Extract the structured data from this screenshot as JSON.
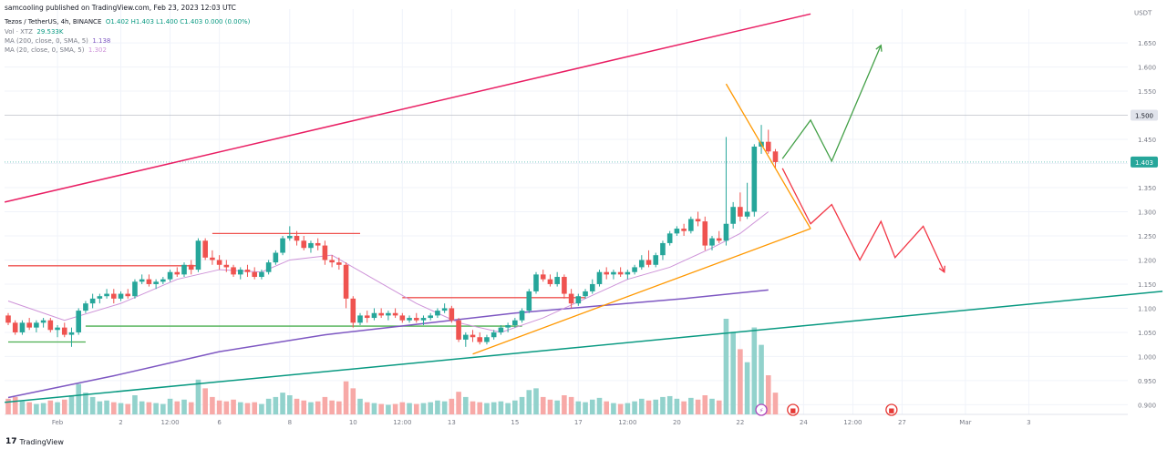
{
  "publisher_line": "samcooling published on TradingView.com, Feb 23, 2023 12:03 UTC",
  "header": {
    "symbol": "Tezos / TetherUS, 4h, BINANCE",
    "ohlc": "O1.402  H1.403  L1.400  C1.403  0.000 (0.00%)",
    "vol_label": "Vol · XTZ",
    "vol_value": "29.533K",
    "ma200_label": "MA (200, close, 0, SMA, 5)",
    "ma200_value": "1.138",
    "ma20_label": "MA (20, close, 0, SMA, 5)",
    "ma20_value": "1.302"
  },
  "footer": {
    "logo_text": "TradingView",
    "logo_mark": "17"
  },
  "colors": {
    "up": "#26a69a",
    "down": "#ef5350",
    "up_vol": "#92d2cc",
    "down_vol": "#f7a9a7",
    "ma20": "#ce93d8",
    "ma200": "#7e57c2",
    "channel_top": "#e91e63",
    "channel_bottom": "#089981",
    "triangle": "#ff9800",
    "bull_path": "#43a047",
    "bear_path": "#f23645"
  },
  "chart_data": {
    "type": "candlestick",
    "title": "Tezos / TetherUS, 4h, BINANCE",
    "currency": "USDT",
    "ylim": [
      0.88,
      1.72
    ],
    "y_ticks": [
      0.9,
      0.95,
      1.0,
      1.05,
      1.1,
      1.15,
      1.2,
      1.25,
      1.3,
      1.35,
      1.4,
      1.45,
      1.55,
      1.6,
      1.65
    ],
    "x_ticks": [
      {
        "label": "Feb",
        "bar": 7
      },
      {
        "label": "2",
        "bar": 16
      },
      {
        "label": "12:00",
        "bar": 23
      },
      {
        "label": "6",
        "bar": 30
      },
      {
        "label": "8",
        "bar": 40
      },
      {
        "label": "10",
        "bar": 49
      },
      {
        "label": "12:00",
        "bar": 56
      },
      {
        "label": "13",
        "bar": 63
      },
      {
        "label": "15",
        "bar": 72
      },
      {
        "label": "17",
        "bar": 81
      },
      {
        "label": "12:00",
        "bar": 88
      },
      {
        "label": "20",
        "bar": 95
      },
      {
        "label": "22",
        "bar": 104
      },
      {
        "label": "24",
        "bar": 113
      },
      {
        "label": "12:00",
        "bar": 120
      },
      {
        "label": "27",
        "bar": 127
      },
      {
        "label": "Mar",
        "bar": 136
      },
      {
        "label": "3",
        "bar": 145
      }
    ],
    "price_labels": [
      {
        "text": "1.500",
        "value": 1.5,
        "style": "grey"
      },
      {
        "text": "1.403",
        "value": 1.403,
        "style": "green"
      }
    ],
    "candles": [
      [
        1.085,
        1.09,
        1.065,
        1.07,
        18
      ],
      [
        1.07,
        1.075,
        1.045,
        1.05,
        20
      ],
      [
        1.05,
        1.075,
        1.045,
        1.07,
        15
      ],
      [
        1.07,
        1.08,
        1.055,
        1.06,
        14
      ],
      [
        1.06,
        1.075,
        1.05,
        1.07,
        12
      ],
      [
        1.07,
        1.08,
        1.06,
        1.075,
        13
      ],
      [
        1.075,
        1.08,
        1.05,
        1.055,
        16
      ],
      [
        1.055,
        1.065,
        1.04,
        1.06,
        14
      ],
      [
        1.06,
        1.07,
        1.04,
        1.045,
        17
      ],
      [
        1.045,
        1.06,
        1.02,
        1.05,
        22
      ],
      [
        1.05,
        1.1,
        1.045,
        1.095,
        35
      ],
      [
        1.095,
        1.115,
        1.09,
        1.11,
        25
      ],
      [
        1.11,
        1.13,
        1.1,
        1.12,
        20
      ],
      [
        1.12,
        1.13,
        1.11,
        1.125,
        15
      ],
      [
        1.125,
        1.14,
        1.12,
        1.13,
        16
      ],
      [
        1.13,
        1.14,
        1.11,
        1.12,
        14
      ],
      [
        1.12,
        1.135,
        1.115,
        1.13,
        13
      ],
      [
        1.13,
        1.14,
        1.12,
        1.125,
        12
      ],
      [
        1.125,
        1.16,
        1.12,
        1.155,
        22
      ],
      [
        1.155,
        1.17,
        1.15,
        1.16,
        15
      ],
      [
        1.16,
        1.17,
        1.145,
        1.15,
        14
      ],
      [
        1.15,
        1.16,
        1.14,
        1.155,
        13
      ],
      [
        1.155,
        1.165,
        1.15,
        1.16,
        12
      ],
      [
        1.16,
        1.18,
        1.155,
        1.175,
        18
      ],
      [
        1.175,
        1.185,
        1.165,
        1.17,
        15
      ],
      [
        1.17,
        1.195,
        1.165,
        1.19,
        17
      ],
      [
        1.19,
        1.2,
        1.17,
        1.18,
        14
      ],
      [
        1.18,
        1.245,
        1.175,
        1.24,
        40
      ],
      [
        1.24,
        1.245,
        1.2,
        1.205,
        30
      ],
      [
        1.205,
        1.22,
        1.19,
        1.2,
        20
      ],
      [
        1.2,
        1.21,
        1.18,
        1.19,
        16
      ],
      [
        1.19,
        1.2,
        1.175,
        1.185,
        15
      ],
      [
        1.185,
        1.19,
        1.165,
        1.17,
        17
      ],
      [
        1.17,
        1.185,
        1.16,
        1.18,
        14
      ],
      [
        1.18,
        1.19,
        1.165,
        1.175,
        13
      ],
      [
        1.175,
        1.185,
        1.16,
        1.165,
        14
      ],
      [
        1.165,
        1.18,
        1.16,
        1.175,
        12
      ],
      [
        1.175,
        1.2,
        1.17,
        1.195,
        18
      ],
      [
        1.195,
        1.22,
        1.19,
        1.215,
        20
      ],
      [
        1.215,
        1.25,
        1.21,
        1.245,
        25
      ],
      [
        1.245,
        1.27,
        1.24,
        1.25,
        22
      ],
      [
        1.25,
        1.26,
        1.23,
        1.24,
        18
      ],
      [
        1.24,
        1.25,
        1.22,
        1.225,
        16
      ],
      [
        1.225,
        1.24,
        1.215,
        1.235,
        14
      ],
      [
        1.235,
        1.245,
        1.22,
        1.23,
        15
      ],
      [
        1.23,
        1.24,
        1.19,
        1.2,
        20
      ],
      [
        1.2,
        1.21,
        1.185,
        1.195,
        16
      ],
      [
        1.195,
        1.205,
        1.18,
        1.19,
        15
      ],
      [
        1.19,
        1.195,
        1.1,
        1.12,
        38
      ],
      [
        1.12,
        1.125,
        1.06,
        1.07,
        30
      ],
      [
        1.07,
        1.09,
        1.065,
        1.085,
        18
      ],
      [
        1.085,
        1.095,
        1.07,
        1.08,
        14
      ],
      [
        1.08,
        1.1,
        1.075,
        1.09,
        13
      ],
      [
        1.09,
        1.1,
        1.08,
        1.085,
        12
      ],
      [
        1.085,
        1.095,
        1.075,
        1.09,
        11
      ],
      [
        1.09,
        1.1,
        1.08,
        1.085,
        12
      ],
      [
        1.085,
        1.09,
        1.07,
        1.075,
        14
      ],
      [
        1.075,
        1.085,
        1.07,
        1.08,
        13
      ],
      [
        1.08,
        1.09,
        1.07,
        1.075,
        12
      ],
      [
        1.075,
        1.085,
        1.065,
        1.08,
        13
      ],
      [
        1.08,
        1.09,
        1.075,
        1.085,
        14
      ],
      [
        1.085,
        1.1,
        1.08,
        1.095,
        16
      ],
      [
        1.095,
        1.11,
        1.09,
        1.1,
        15
      ],
      [
        1.1,
        1.105,
        1.07,
        1.075,
        18
      ],
      [
        1.075,
        1.08,
        1.03,
        1.035,
        26
      ],
      [
        1.035,
        1.05,
        1.02,
        1.045,
        20
      ],
      [
        1.045,
        1.055,
        1.03,
        1.04,
        15
      ],
      [
        1.04,
        1.05,
        1.025,
        1.03,
        14
      ],
      [
        1.03,
        1.045,
        1.025,
        1.04,
        13
      ],
      [
        1.04,
        1.055,
        1.035,
        1.05,
        14
      ],
      [
        1.05,
        1.065,
        1.045,
        1.06,
        15
      ],
      [
        1.06,
        1.07,
        1.05,
        1.065,
        13
      ],
      [
        1.065,
        1.08,
        1.06,
        1.075,
        16
      ],
      [
        1.075,
        1.1,
        1.07,
        1.095,
        20
      ],
      [
        1.095,
        1.14,
        1.09,
        1.135,
        28
      ],
      [
        1.135,
        1.175,
        1.13,
        1.17,
        30
      ],
      [
        1.17,
        1.18,
        1.155,
        1.16,
        20
      ],
      [
        1.16,
        1.17,
        1.145,
        1.15,
        17
      ],
      [
        1.15,
        1.175,
        1.145,
        1.165,
        16
      ],
      [
        1.165,
        1.17,
        1.12,
        1.13,
        22
      ],
      [
        1.13,
        1.14,
        1.1,
        1.11,
        20
      ],
      [
        1.11,
        1.13,
        1.105,
        1.125,
        15
      ],
      [
        1.125,
        1.14,
        1.12,
        1.135,
        14
      ],
      [
        1.135,
        1.16,
        1.13,
        1.15,
        17
      ],
      [
        1.15,
        1.18,
        1.145,
        1.175,
        19
      ],
      [
        1.175,
        1.185,
        1.16,
        1.17,
        15
      ],
      [
        1.17,
        1.18,
        1.16,
        1.175,
        13
      ],
      [
        1.175,
        1.185,
        1.165,
        1.17,
        12
      ],
      [
        1.17,
        1.18,
        1.16,
        1.175,
        13
      ],
      [
        1.175,
        1.19,
        1.17,
        1.185,
        15
      ],
      [
        1.185,
        1.21,
        1.18,
        1.2,
        18
      ],
      [
        1.2,
        1.22,
        1.185,
        1.19,
        16
      ],
      [
        1.19,
        1.215,
        1.185,
        1.21,
        17
      ],
      [
        1.21,
        1.24,
        1.2,
        1.235,
        20
      ],
      [
        1.235,
        1.26,
        1.23,
        1.255,
        21
      ],
      [
        1.255,
        1.27,
        1.25,
        1.265,
        18
      ],
      [
        1.265,
        1.275,
        1.25,
        1.26,
        15
      ],
      [
        1.26,
        1.29,
        1.255,
        1.285,
        19
      ],
      [
        1.285,
        1.3,
        1.27,
        1.28,
        17
      ],
      [
        1.28,
        1.29,
        1.22,
        1.23,
        22
      ],
      [
        1.23,
        1.25,
        1.22,
        1.245,
        18
      ],
      [
        1.245,
        1.26,
        1.235,
        1.24,
        16
      ],
      [
        1.24,
        1.455,
        1.23,
        1.275,
        110
      ],
      [
        1.275,
        1.32,
        1.265,
        1.31,
        95
      ],
      [
        1.31,
        1.34,
        1.28,
        1.29,
        75
      ],
      [
        1.29,
        1.36,
        1.285,
        1.3,
        60
      ],
      [
        1.3,
        1.44,
        1.29,
        1.435,
        100
      ],
      [
        1.435,
        1.48,
        1.42,
        1.445,
        80
      ],
      [
        1.445,
        1.47,
        1.42,
        1.425,
        45
      ],
      [
        1.425,
        1.43,
        1.39,
        1.403,
        25
      ]
    ],
    "ma20": [
      [
        0,
        1.115
      ],
      [
        8,
        1.075
      ],
      [
        16,
        1.11
      ],
      [
        24,
        1.16
      ],
      [
        30,
        1.18
      ],
      [
        36,
        1.175
      ],
      [
        40,
        1.2
      ],
      [
        46,
        1.21
      ],
      [
        52,
        1.16
      ],
      [
        58,
        1.11
      ],
      [
        64,
        1.07
      ],
      [
        70,
        1.05
      ],
      [
        76,
        1.08
      ],
      [
        82,
        1.12
      ],
      [
        88,
        1.16
      ],
      [
        94,
        1.185
      ],
      [
        100,
        1.225
      ],
      [
        104,
        1.255
      ],
      [
        108,
        1.3
      ]
    ],
    "ma200": [
      [
        0,
        0.915
      ],
      [
        15,
        0.96
      ],
      [
        30,
        1.01
      ],
      [
        45,
        1.045
      ],
      [
        60,
        1.07
      ],
      [
        72,
        1.09
      ],
      [
        84,
        1.105
      ],
      [
        96,
        1.12
      ],
      [
        108,
        1.138
      ]
    ],
    "drawings": {
      "channel_top": [
        [
          -0.5,
          1.32
        ],
        [
          114,
          1.71
        ]
      ],
      "channel_bottom": [
        [
          -0.5,
          0.905
        ],
        [
          164,
          1.135
        ]
      ],
      "triangle_upper": [
        [
          102,
          1.565
        ],
        [
          114,
          1.265
        ]
      ],
      "triangle_lower": [
        [
          66,
          1.005
        ],
        [
          114,
          1.265
        ]
      ],
      "h_res_1": {
        "from": 0,
        "to": 27,
        "y": 1.188
      },
      "h_res_2": {
        "from": 29,
        "to": 50,
        "y": 1.255
      },
      "h_res_3": {
        "from": 56,
        "to": 82,
        "y": 1.122
      },
      "h_sup_1": {
        "from": 0,
        "to": 11,
        "y": 1.03
      },
      "h_sup_2": {
        "from": 11,
        "to": 73,
        "y": 1.063
      },
      "bull_path": [
        [
          110,
          1.41
        ],
        [
          114,
          1.49
        ],
        [
          117,
          1.405
        ],
        [
          124,
          1.645
        ]
      ],
      "bear_path": [
        [
          110,
          1.39
        ],
        [
          114,
          1.275
        ],
        [
          117,
          1.315
        ],
        [
          121,
          1.2
        ],
        [
          124,
          1.28
        ],
        [
          126,
          1.205
        ],
        [
          130,
          1.27
        ],
        [
          133,
          1.175
        ]
      ]
    }
  }
}
